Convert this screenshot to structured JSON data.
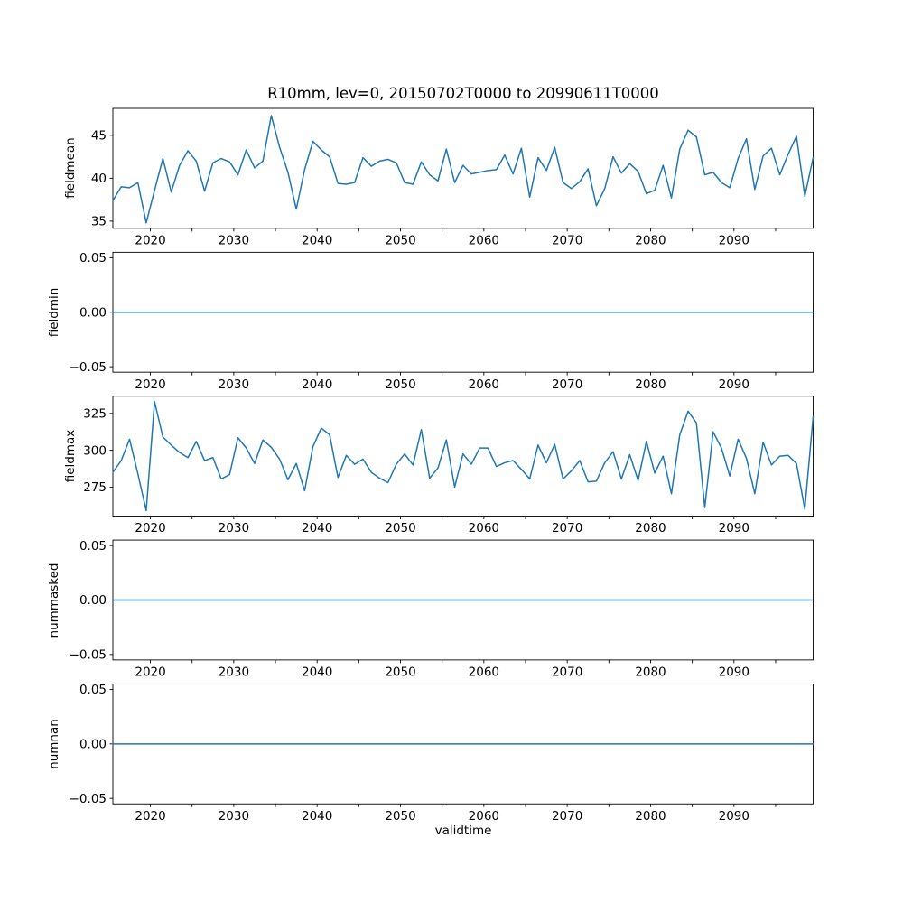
{
  "figure": {
    "title": "R10mm, lev=0, 20150702T0000 to 20990611T0000",
    "background": "#ffffff",
    "line_color": "#1f77b4",
    "text_color": "#000000",
    "spine_color": "#000000"
  },
  "x_axis": {
    "label": "validtime",
    "xlim": [
      2015.5,
      2099.5
    ],
    "x_start": 2015.5,
    "x_step": 1,
    "n_points": 85,
    "tick_start": 2020,
    "tick_end": 2095,
    "tick_step": 5,
    "tick_labels": [
      "2020",
      "2030",
      "2040",
      "2050",
      "2060",
      "2070",
      "2080",
      "2090"
    ]
  },
  "chart_data": [
    {
      "type": "line",
      "name": "fieldmean",
      "ylabel": "fieldmean",
      "legend": "none",
      "grid": false,
      "ylim": [
        34.17,
        48.14
      ],
      "yticks": [
        35,
        40,
        45
      ],
      "ytick_labels": [
        "35",
        "40",
        "45"
      ],
      "values": [
        37.4,
        39.0,
        38.9,
        39.5,
        34.8,
        38.6,
        42.3,
        38.4,
        41.5,
        43.2,
        42.0,
        38.5,
        41.8,
        42.3,
        41.9,
        40.4,
        43.3,
        41.2,
        42.0,
        47.3,
        43.6,
        40.7,
        36.4,
        41.0,
        44.3,
        43.3,
        42.5,
        39.4,
        39.3,
        39.5,
        42.4,
        41.4,
        42.0,
        42.2,
        41.8,
        39.5,
        39.3,
        41.9,
        40.4,
        39.7,
        43.4,
        39.5,
        41.5,
        40.5,
        40.7,
        40.9,
        41.0,
        42.7,
        40.5,
        43.5,
        37.8,
        42.4,
        40.9,
        43.6,
        39.5,
        38.8,
        39.6,
        41.1,
        36.8,
        38.8,
        42.5,
        40.6,
        41.7,
        40.8,
        38.2,
        38.6,
        41.5,
        37.7,
        43.4,
        45.6,
        44.8,
        40.4,
        40.7,
        39.5,
        38.9,
        42.3,
        44.6,
        38.7,
        42.6,
        43.5,
        40.4,
        42.8,
        44.9,
        37.9,
        42.4
      ]
    },
    {
      "type": "line",
      "name": "fieldmin",
      "ylabel": "fieldmin",
      "legend": "none",
      "grid": false,
      "constant": 0,
      "ylim": [
        -0.055,
        0.055
      ],
      "yticks": [
        -0.05,
        0.0,
        0.05
      ],
      "ytick_labels": [
        "−0.05",
        "0.00",
        "0.05"
      ]
    },
    {
      "type": "line",
      "name": "fieldmax",
      "ylabel": "fieldmax",
      "legend": "none",
      "grid": false,
      "ylim": [
        255.3,
        336.7
      ],
      "yticks": [
        275,
        300,
        325
      ],
      "ytick_labels": [
        "275",
        "300",
        "325"
      ],
      "values": [
        285,
        293,
        307.5,
        284,
        259,
        333,
        309,
        303.5,
        298.5,
        295,
        306,
        293,
        295,
        280.5,
        283.5,
        308.5,
        301.5,
        291,
        307,
        302,
        294,
        280,
        291,
        272.5,
        302.5,
        315,
        310.5,
        281.5,
        296.5,
        290.5,
        294,
        285,
        281,
        278,
        290.5,
        297.5,
        290,
        314,
        281,
        288,
        307,
        275,
        297.5,
        290.5,
        301.5,
        301.5,
        289,
        291.5,
        293,
        287,
        280.5,
        303.5,
        291.5,
        304,
        280.5,
        286,
        293,
        278.5,
        279,
        291.5,
        299,
        280.5,
        297,
        279.5,
        306,
        284.5,
        296,
        270.5,
        310.5,
        326.5,
        318.5,
        261,
        312.5,
        301.5,
        282.5,
        307.5,
        294.5,
        270.5,
        305.5,
        290,
        296,
        296.5,
        291,
        260,
        323
      ]
    },
    {
      "type": "line",
      "name": "nummasked",
      "ylabel": "nummasked",
      "legend": "none",
      "grid": false,
      "constant": 0,
      "ylim": [
        -0.055,
        0.055
      ],
      "yticks": [
        -0.05,
        0.0,
        0.05
      ],
      "ytick_labels": [
        "−0.05",
        "0.00",
        "0.05"
      ]
    },
    {
      "type": "line",
      "name": "numnan",
      "ylabel": "numnan",
      "legend": "none",
      "grid": false,
      "constant": 0,
      "ylim": [
        -0.055,
        0.055
      ],
      "yticks": [
        -0.05,
        0.0,
        0.05
      ],
      "ytick_labels": [
        "−0.05",
        "0.00",
        "0.05"
      ]
    }
  ]
}
